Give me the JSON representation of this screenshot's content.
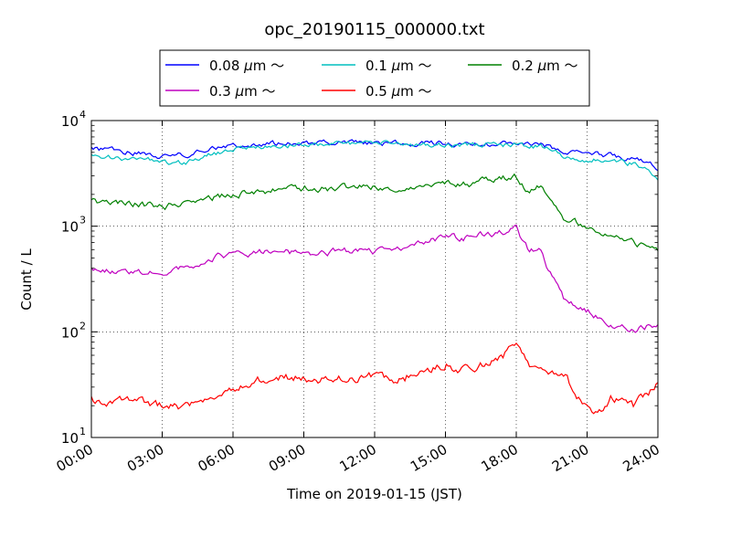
{
  "chart_data": {
    "type": "line",
    "title": "opc_20190115_000000.txt",
    "xlabel": "Time on 2019-01-15 (JST)",
    "ylabel": "Count / L",
    "yscale": "log",
    "xlim": [
      0,
      24
    ],
    "ylim": [
      10,
      10000
    ],
    "grid": true,
    "legend": "top-center, outside plot, 3 columns",
    "x_ticks": [
      0,
      3,
      6,
      9,
      12,
      15,
      18,
      21,
      24
    ],
    "x_tick_labels": [
      "00:00",
      "03:00",
      "06:00",
      "09:00",
      "12:00",
      "15:00",
      "18:00",
      "21:00",
      "24:00"
    ],
    "y_ticks": [
      {
        "value": 10,
        "base": "10",
        "exp": "1"
      },
      {
        "value": 100,
        "base": "10",
        "exp": "2"
      },
      {
        "value": 1000,
        "base": "10",
        "exp": "3"
      },
      {
        "value": 10000,
        "base": "10",
        "exp": "4"
      }
    ],
    "series": [
      {
        "name": "0.08 μm ～",
        "label_main": "0.08 ",
        "label_mu": "μ",
        "label_rest": "m ～",
        "color": "#0000ff",
        "noise": 0.04,
        "x": [
          0,
          1,
          2,
          3,
          4,
          5,
          6,
          7,
          8,
          9,
          10,
          11,
          12,
          13,
          14,
          15,
          16,
          17,
          18,
          19,
          20,
          21,
          22,
          23,
          24
        ],
        "values": [
          5400,
          5100,
          4900,
          4600,
          4800,
          5400,
          5700,
          5900,
          6000,
          6100,
          6100,
          6200,
          6200,
          6100,
          6100,
          6100,
          6000,
          6000,
          6000,
          5900,
          5200,
          4900,
          4700,
          4400,
          3600
        ]
      },
      {
        "name": "0.1 μm ～",
        "label_main": "0.1 ",
        "label_mu": "μ",
        "label_rest": "m ～",
        "color": "#00bfbf",
        "noise": 0.04,
        "x": [
          0,
          1,
          2,
          3,
          4,
          5,
          6,
          7,
          8,
          9,
          10,
          11,
          12,
          13,
          14,
          15,
          16,
          17,
          18,
          19,
          20,
          21,
          22,
          23,
          24
        ],
        "values": [
          4800,
          4500,
          4300,
          4100,
          4000,
          4800,
          5300,
          5600,
          5800,
          5900,
          6000,
          6100,
          6100,
          6000,
          6000,
          6000,
          5900,
          5900,
          5800,
          5700,
          4600,
          4300,
          4100,
          3900,
          2900
        ]
      },
      {
        "name": "0.2 μm ～",
        "label_main": "0.2 ",
        "label_mu": "μ",
        "label_rest": "m ～",
        "color": "#008000",
        "noise": 0.05,
        "x": [
          0,
          1,
          2,
          3,
          4,
          5,
          6,
          7,
          8,
          9,
          10,
          11,
          12,
          13,
          14,
          15,
          16,
          17,
          18,
          18.5,
          19,
          20,
          21,
          22,
          23,
          24
        ],
        "values": [
          1700,
          1650,
          1600,
          1550,
          1600,
          1850,
          2000,
          2100,
          2200,
          2300,
          2250,
          2350,
          2400,
          2150,
          2400,
          2600,
          2450,
          2800,
          2900,
          2100,
          2400,
          1200,
          1000,
          850,
          700,
          620
        ]
      },
      {
        "name": "0.3 μm ～",
        "label_main": "0.3 ",
        "label_mu": "μ",
        "label_rest": "m ～",
        "color": "#bf00bf",
        "noise": 0.05,
        "x": [
          0,
          1,
          2,
          3,
          4,
          5,
          6,
          7,
          8,
          9,
          10,
          11,
          12,
          13,
          14,
          15,
          16,
          17,
          18,
          18.5,
          19,
          20,
          21,
          22,
          23,
          24
        ],
        "values": [
          400,
          370,
          360,
          370,
          410,
          500,
          540,
          560,
          570,
          560,
          560,
          590,
          560,
          600,
          700,
          800,
          780,
          850,
          950,
          600,
          580,
          200,
          160,
          120,
          105,
          120
        ]
      },
      {
        "name": "0.5 μm ～",
        "label_main": "0.5 ",
        "label_mu": "μ",
        "label_rest": "m ～",
        "color": "#ff0000",
        "noise": 0.07,
        "x": [
          0,
          1,
          2,
          3,
          4,
          5,
          6,
          7,
          8,
          9,
          10,
          11,
          12,
          13,
          14,
          15,
          16,
          17,
          18,
          18.5,
          19,
          20,
          21,
          21.5,
          22,
          23,
          24
        ],
        "values": [
          23,
          22,
          21,
          20,
          20,
          26,
          30,
          35,
          37,
          36,
          35,
          38,
          37,
          36,
          40,
          50,
          42,
          55,
          70,
          48,
          50,
          40,
          18,
          16,
          25,
          20,
          32
        ]
      }
    ]
  }
}
